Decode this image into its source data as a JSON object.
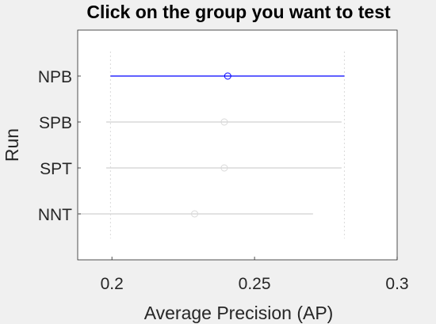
{
  "chart_data": {
    "type": "scatter",
    "title": "Click on the group you want to test",
    "xlabel": "Average Precision (AP)",
    "ylabel": "Run",
    "xlim": [
      0.188,
      0.3
    ],
    "xticks": [
      {
        "value": 0.2,
        "label": "0.2"
      },
      {
        "value": 0.25,
        "label": "0.25"
      },
      {
        "value": 0.3,
        "label": "0.3"
      }
    ],
    "categories": [
      "NPB",
      "SPB",
      "SPT",
      "NNT"
    ],
    "groups": [
      {
        "name": "NPB",
        "mean": 0.2406,
        "lower": 0.1995,
        "upper": 0.2815,
        "selected": true
      },
      {
        "name": "SPB",
        "mean": 0.2394,
        "lower": 0.198,
        "upper": 0.2805,
        "selected": false
      },
      {
        "name": "SPT",
        "mean": 0.2394,
        "lower": 0.198,
        "upper": 0.2805,
        "selected": false
      },
      {
        "name": "NNT",
        "mean": 0.229,
        "lower": 0.1875,
        "upper": 0.2705,
        "selected": false
      }
    ],
    "reference_lines": [
      0.1995,
      0.2815
    ],
    "grid": false,
    "legend": "none",
    "colors": {
      "selected": "#0000ff",
      "unselected": "#d9d9d9",
      "reference": "#d9d9d9"
    }
  }
}
